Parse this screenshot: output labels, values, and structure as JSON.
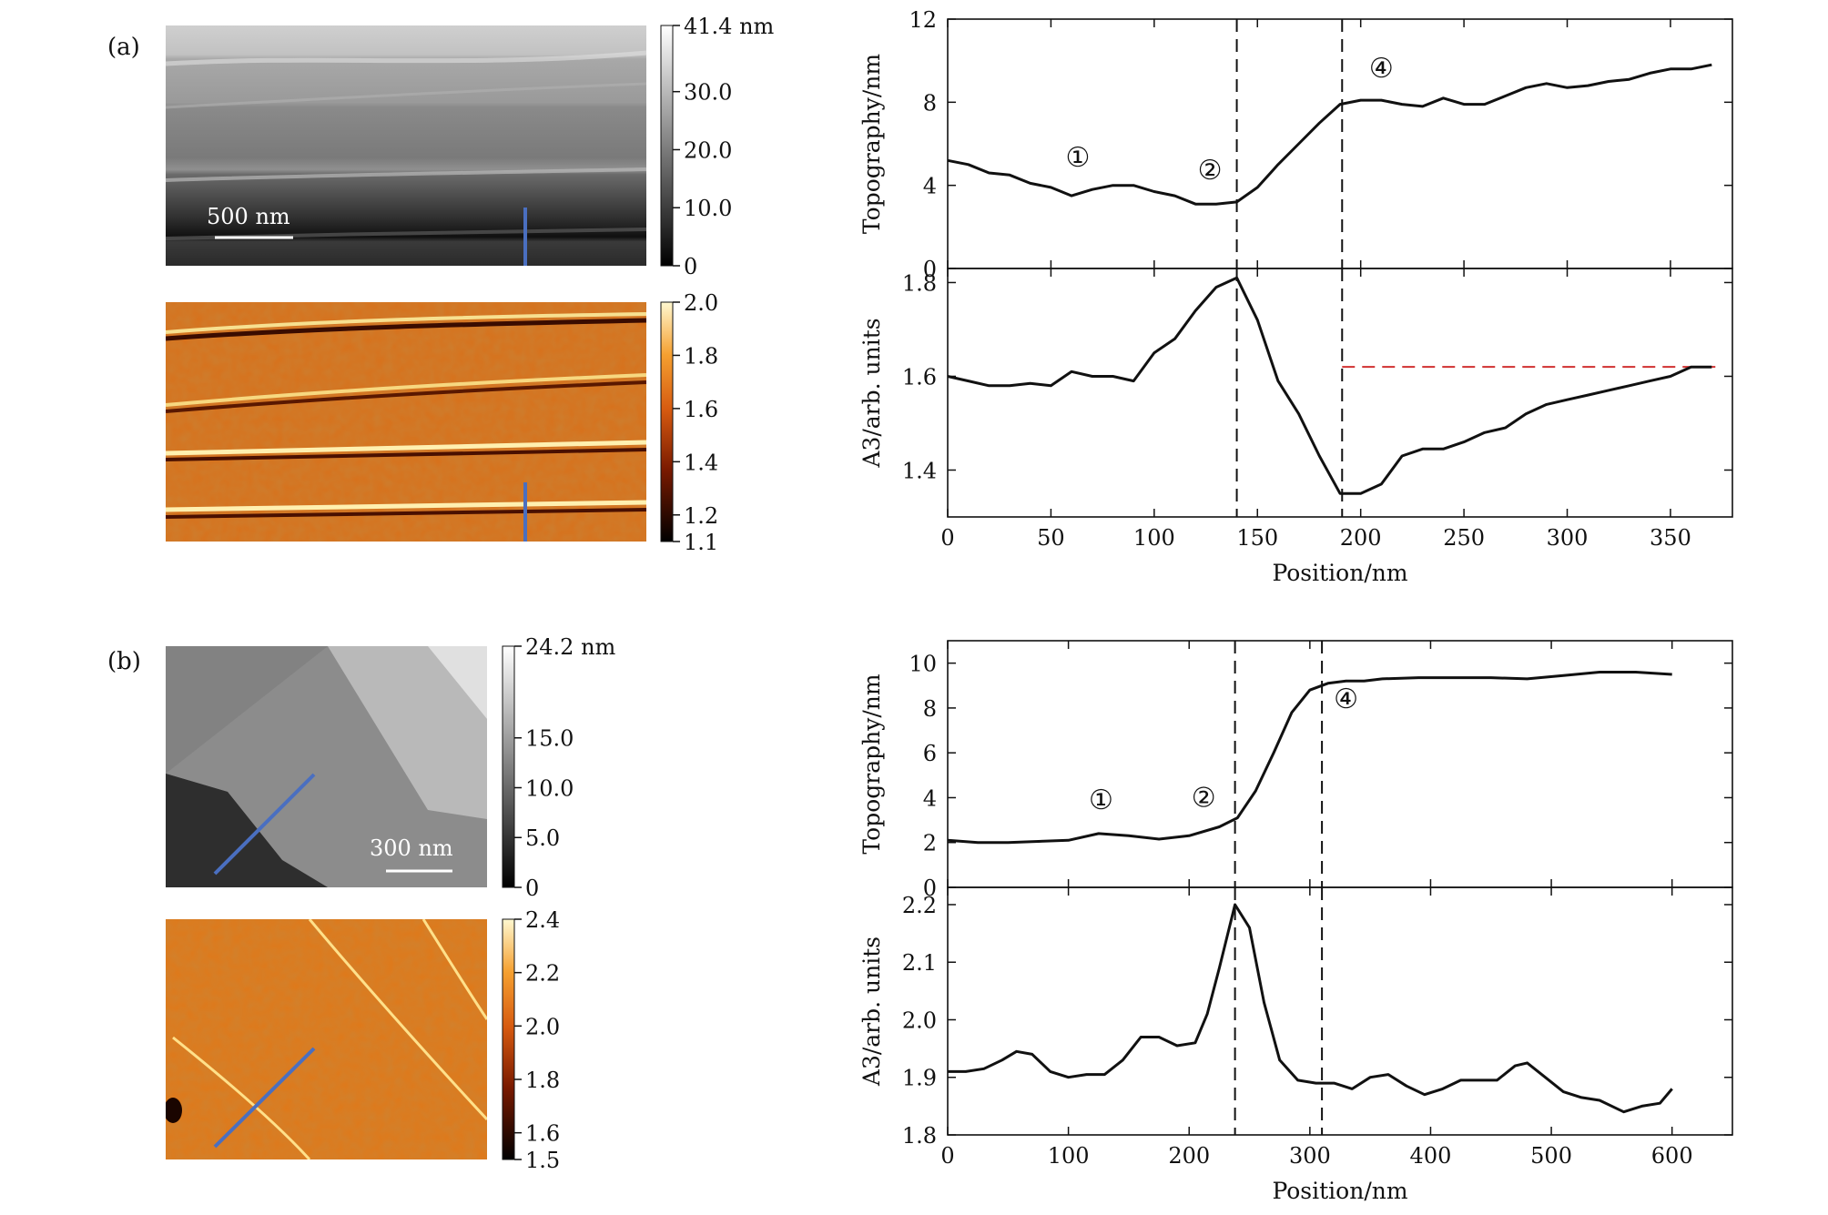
{
  "panels": [
    {
      "label": "(a)",
      "topo_map": {
        "scalebar": "500 nm",
        "colorbar_ticks": [
          "41.4 nm",
          "30.0",
          "20.0",
          "10.0",
          "0"
        ],
        "colorbar_values": [
          41.4,
          30.0,
          20.0,
          10.0,
          0
        ]
      },
      "a3_map": {
        "colorbar_ticks": [
          "2.0",
          "1.8",
          "1.6",
          "1.4",
          "1.2",
          "1.1"
        ],
        "colorbar_values": [
          2.0,
          1.8,
          1.6,
          1.4,
          1.2,
          1.1
        ]
      }
    },
    {
      "label": "(b)",
      "topo_map": {
        "scalebar": "300 nm",
        "colorbar_ticks": [
          "24.2 nm",
          "15.0",
          "10.0",
          "5.0",
          "0"
        ],
        "colorbar_values": [
          24.2,
          15.0,
          10.0,
          5.0,
          0
        ]
      },
      "a3_map": {
        "colorbar_ticks": [
          "2.4",
          "2.2",
          "2.0",
          "1.8",
          "1.6",
          "1.5"
        ],
        "colorbar_values": [
          2.4,
          2.2,
          2.0,
          1.8,
          1.6,
          1.5
        ]
      }
    }
  ],
  "chart_data": [
    {
      "type": "line",
      "panel": "(a)",
      "ylabel": "Topography/nm",
      "xlim": [
        0,
        380
      ],
      "ylim": [
        0,
        12
      ],
      "yticks": [
        0,
        4,
        8,
        12
      ],
      "series": [
        {
          "x": [
            0,
            10,
            20,
            30,
            40,
            50,
            60,
            70,
            80,
            90,
            100,
            110,
            120,
            130,
            140,
            150,
            160,
            170,
            180,
            190,
            200,
            210,
            220,
            230,
            240,
            250,
            260,
            270,
            280,
            290,
            300,
            310,
            320,
            330,
            340,
            350,
            360,
            370
          ],
          "values": [
            5.2,
            5.0,
            4.6,
            4.5,
            4.1,
            3.9,
            3.5,
            3.8,
            4.0,
            4.0,
            3.7,
            3.5,
            3.1,
            3.1,
            3.2,
            3.9,
            5.0,
            6.0,
            7.0,
            7.9,
            8.1,
            8.1,
            7.9,
            7.8,
            8.2,
            7.9,
            7.9,
            8.3,
            8.7,
            8.9,
            8.7,
            8.8,
            9.0,
            9.1,
            9.4,
            9.6,
            9.6,
            9.8
          ]
        }
      ],
      "vlines": [
        140,
        191
      ],
      "annotations": [
        {
          "text": "①",
          "x": 63,
          "y": 4.9
        },
        {
          "text": "②",
          "x": 127,
          "y": 4.3
        },
        {
          "text": "④",
          "x": 210,
          "y": 9.2
        }
      ]
    },
    {
      "type": "line",
      "panel": "(a)",
      "ylabel": "A3/arb. units",
      "xlabel": "Position/nm",
      "xlim": [
        0,
        380
      ],
      "ylim": [
        1.3,
        1.83
      ],
      "xticks": [
        0,
        50,
        100,
        150,
        200,
        250,
        300,
        350
      ],
      "yticks": [
        1.4,
        1.6,
        1.8
      ],
      "series": [
        {
          "x": [
            0,
            10,
            20,
            30,
            40,
            50,
            60,
            70,
            80,
            90,
            100,
            110,
            120,
            130,
            140,
            150,
            160,
            170,
            180,
            190,
            200,
            210,
            220,
            230,
            240,
            250,
            260,
            270,
            280,
            290,
            300,
            310,
            320,
            330,
            340,
            350,
            360,
            370
          ],
          "values": [
            1.6,
            1.59,
            1.58,
            1.58,
            1.585,
            1.58,
            1.61,
            1.6,
            1.6,
            1.59,
            1.65,
            1.68,
            1.74,
            1.79,
            1.81,
            1.72,
            1.59,
            1.52,
            1.43,
            1.35,
            1.35,
            1.37,
            1.43,
            1.445,
            1.445,
            1.46,
            1.48,
            1.49,
            1.52,
            1.54,
            1.55,
            1.56,
            1.57,
            1.58,
            1.59,
            1.6,
            1.62,
            1.62
          ]
        }
      ],
      "vlines": [
        140,
        191
      ],
      "hline": {
        "y": 1.62,
        "x_from": 191,
        "x_to": 372,
        "color": "#d03030"
      }
    },
    {
      "type": "line",
      "panel": "(b)",
      "ylabel": "Topography/nm",
      "xlim": [
        0,
        650
      ],
      "ylim": [
        0,
        11
      ],
      "yticks": [
        0,
        2,
        4,
        6,
        8,
        10
      ],
      "series": [
        {
          "x": [
            0,
            25,
            50,
            75,
            100,
            125,
            150,
            175,
            200,
            225,
            240,
            255,
            270,
            285,
            300,
            315,
            330,
            345,
            360,
            390,
            420,
            450,
            480,
            510,
            540,
            570,
            600
          ],
          "values": [
            2.1,
            2.0,
            2.0,
            2.05,
            2.1,
            2.4,
            2.3,
            2.15,
            2.3,
            2.7,
            3.1,
            4.3,
            6.0,
            7.8,
            8.8,
            9.1,
            9.2,
            9.2,
            9.3,
            9.35,
            9.35,
            9.35,
            9.3,
            9.45,
            9.6,
            9.6,
            9.5
          ]
        }
      ],
      "vlines": [
        238,
        310
      ],
      "annotations": [
        {
          "text": "①",
          "x": 127,
          "y": 3.5
        },
        {
          "text": "②",
          "x": 212,
          "y": 3.6
        },
        {
          "text": "④",
          "x": 330,
          "y": 8.0
        }
      ]
    },
    {
      "type": "line",
      "panel": "(b)",
      "ylabel": "A3/arb. units",
      "xlabel": "Position/nm",
      "xlim": [
        0,
        650
      ],
      "ylim": [
        1.8,
        2.23
      ],
      "xticks": [
        0,
        100,
        200,
        300,
        400,
        500,
        600
      ],
      "yticks": [
        1.8,
        1.9,
        2.0,
        2.1,
        2.2
      ],
      "series": [
        {
          "x": [
            0,
            15,
            30,
            45,
            57,
            70,
            85,
            100,
            115,
            130,
            145,
            160,
            175,
            190,
            205,
            215,
            225,
            238,
            250,
            262,
            275,
            290,
            305,
            320,
            335,
            350,
            365,
            380,
            395,
            410,
            425,
            440,
            455,
            470,
            480,
            495,
            510,
            525,
            540,
            560,
            575,
            590,
            600
          ],
          "values": [
            1.91,
            1.91,
            1.915,
            1.93,
            1.945,
            1.94,
            1.91,
            1.9,
            1.905,
            1.905,
            1.93,
            1.97,
            1.97,
            1.955,
            1.96,
            2.01,
            2.09,
            2.2,
            2.16,
            2.03,
            1.93,
            1.895,
            1.89,
            1.89,
            1.88,
            1.9,
            1.905,
            1.885,
            1.87,
            1.88,
            1.895,
            1.895,
            1.895,
            1.92,
            1.925,
            1.9,
            1.875,
            1.865,
            1.86,
            1.84,
            1.85,
            1.855,
            1.88
          ]
        }
      ],
      "vlines": [
        238,
        310
      ]
    }
  ]
}
